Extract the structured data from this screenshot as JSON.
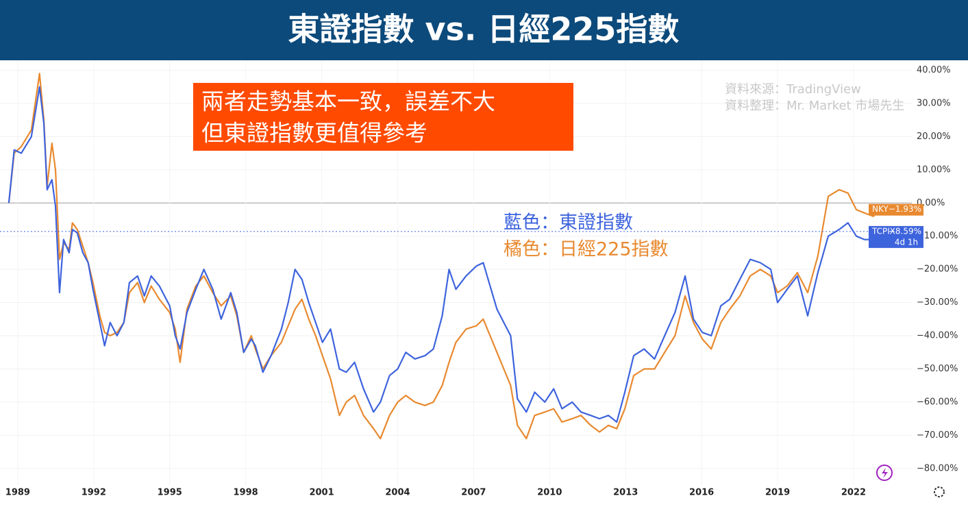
{
  "chart_data": {
    "type": "line",
    "title": "東證指數 vs. 日經225指數",
    "annotation": [
      "兩者走勢基本一致，誤差不大",
      "但東證指數更值得參考"
    ],
    "source": [
      "資料來源：TradingView",
      "資料整理：Mr. Market 市場先生"
    ],
    "x": [
      1988.65,
      1988.86,
      1989.14,
      1989.54,
      1989.86,
      1990.03,
      1990.16,
      1990.35,
      1990.49,
      1990.65,
      1990.81,
      1991.03,
      1991.16,
      1991.35,
      1991.57,
      1991.78,
      1991.97,
      1992.24,
      1992.43,
      1992.65,
      1992.92,
      1993.19,
      1993.41,
      1993.73,
      1994.0,
      1994.27,
      1994.59,
      1995.0,
      1995.22,
      1995.41,
      1995.68,
      1996.03,
      1996.35,
      1996.7,
      1997.03,
      1997.41,
      1997.65,
      1997.92,
      1998.22,
      1998.38,
      1998.68,
      1999.0,
      1999.41,
      1999.68,
      1999.95,
      2000.22,
      2000.49,
      2000.76,
      2001.03,
      2001.35,
      2001.7,
      2001.97,
      2002.3,
      2002.65,
      2003.05,
      2003.32,
      2003.68,
      2004.0,
      2004.32,
      2004.68,
      2005.08,
      2005.41,
      2005.76,
      2006.03,
      2006.3,
      2006.7,
      2007.11,
      2007.38,
      2007.65,
      2007.92,
      2008.19,
      2008.46,
      2008.73,
      2009.08,
      2009.41,
      2009.81,
      2010.16,
      2010.49,
      2010.89,
      2011.24,
      2011.62,
      2011.97,
      2012.32,
      2012.65,
      2012.97,
      2013.32,
      2013.73,
      2014.14,
      2014.54,
      2014.95,
      2015.35,
      2015.68,
      2016.03,
      2016.38,
      2016.76,
      2017.11,
      2017.51,
      2017.92,
      2018.32,
      2018.73,
      2019.0,
      2019.38,
      2019.78,
      2020.19,
      2020.59,
      2021.0,
      2021.43,
      2021.78,
      2022.11,
      2022.43,
      2022.78,
      2023.05
    ],
    "series": [
      {
        "name": "橘色：日經225指數",
        "color": "#e8892f",
        "end_label": {
          "code": "NKY",
          "text": "−1.93%"
        },
        "values": [
          0,
          15,
          17,
          22,
          39,
          25,
          5,
          18,
          10,
          -17,
          -12,
          -14,
          -6,
          -8,
          -13,
          -18,
          -24,
          -34,
          -39,
          -40,
          -39,
          -36,
          -27,
          -24,
          -30,
          -25,
          -29,
          -33,
          -38,
          -48,
          -32,
          -25,
          -22,
          -27,
          -31,
          -28,
          -34,
          -45,
          -40,
          -44,
          -50,
          -46,
          -42,
          -37,
          -32,
          -29,
          -35,
          -40,
          -46,
          -53,
          -64,
          -60,
          -58,
          -64,
          -68,
          -71,
          -64,
          -60,
          -58,
          -60,
          -61,
          -60,
          -55,
          -48,
          -42,
          -38,
          -37,
          -35,
          -40,
          -45,
          -50,
          -55,
          -67,
          -71,
          -64,
          -63,
          -62,
          -66,
          -65,
          -64,
          -67,
          -69,
          -67,
          -68,
          -62,
          -52,
          -50,
          -50,
          -45,
          -40,
          -28,
          -36,
          -41,
          -44,
          -36,
          -32,
          -28,
          -22,
          -20,
          -22,
          -27,
          -25,
          -21,
          -27,
          -16,
          2,
          4,
          3,
          -2,
          -3,
          -4,
          -1.93
        ]
      },
      {
        "name": "藍色：東證指數",
        "color": "#3d63dd",
        "end_label": {
          "code": "TCPIX",
          "text": "−8.59%",
          "extra": "4d 1h"
        },
        "values": [
          0,
          16,
          15,
          20,
          35,
          24,
          4,
          7,
          -1,
          -27,
          -11,
          -15,
          -8,
          -9,
          -15,
          -18,
          -26,
          -36,
          -43,
          -36,
          -40,
          -36,
          -24,
          -22,
          -28,
          -22,
          -25,
          -31,
          -40,
          -44,
          -33,
          -26,
          -20,
          -26,
          -35,
          -27,
          -33,
          -45,
          -41,
          -43,
          -51,
          -46,
          -38,
          -30,
          -20,
          -23,
          -30,
          -36,
          -42,
          -38,
          -50,
          -51,
          -48,
          -56,
          -63,
          -60,
          -52,
          -50,
          -45,
          -47,
          -46,
          -44,
          -34,
          -20,
          -26,
          -22,
          -19,
          -18,
          -25,
          -32,
          -36,
          -40,
          -59,
          -63,
          -57,
          -60,
          -56,
          -62,
          -60,
          -63,
          -64,
          -65,
          -64,
          -66,
          -57,
          -46,
          -44,
          -47,
          -40,
          -33,
          -22,
          -35,
          -39,
          -40,
          -31,
          -29,
          -23,
          -17,
          -18,
          -20,
          -30,
          -26,
          -22,
          -34,
          -21,
          -10,
          -8,
          -6,
          -10,
          -11,
          -11,
          -8.59
        ]
      }
    ],
    "xlim": [
      1988.3,
      2024.3
    ],
    "xticks": [
      1989,
      1992,
      1995,
      1998,
      2001,
      2004,
      2007,
      2010,
      2013,
      2016,
      2019,
      2022
    ],
    "ylim": [
      -85,
      43
    ],
    "yticks": [
      {
        "value": 40,
        "label": "40.00%"
      },
      {
        "value": 30,
        "label": "30.00%"
      },
      {
        "value": 20,
        "label": "20.00%"
      },
      {
        "value": 10,
        "label": "10.00%"
      },
      {
        "value": 0,
        "label": "0.00%"
      },
      {
        "value": -10,
        "label": "−10.00%"
      },
      {
        "value": -20,
        "label": "−20.00%"
      },
      {
        "value": -30,
        "label": "−30.00%"
      },
      {
        "value": -40,
        "label": "−40.00%"
      },
      {
        "value": -50,
        "label": "−50.00%"
      },
      {
        "value": -60,
        "label": "−60.00%"
      },
      {
        "value": -70,
        "label": "−70.00%"
      },
      {
        "value": -80,
        "label": "−80.00%"
      }
    ],
    "grid": true
  }
}
